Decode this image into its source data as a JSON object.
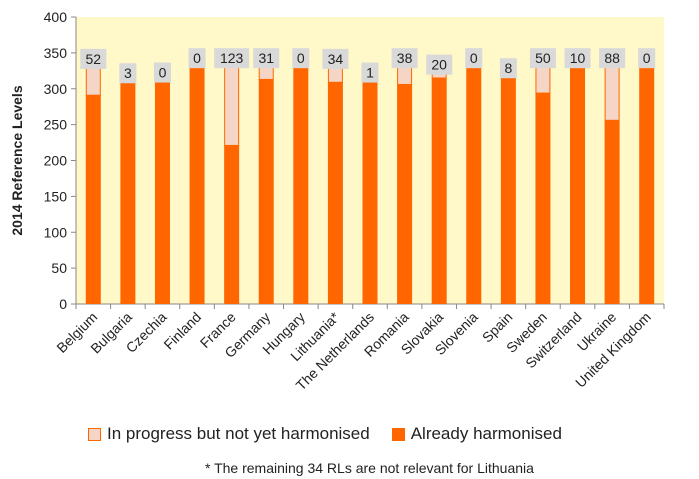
{
  "chart_data": {
    "type": "bar",
    "stacked": true,
    "ylabel": "2014 Reference Levels",
    "ylim": [
      0,
      400
    ],
    "yticks": [
      0,
      50,
      100,
      150,
      200,
      250,
      300,
      350,
      400
    ],
    "grid": false,
    "plot_background": "#fff8c8",
    "categories": [
      "Belgium",
      "Bulgaria",
      "Czechia",
      "Finland",
      "France",
      "Germany",
      "Hungary",
      "Lithuania*",
      "The Netherlands",
      "Romania",
      "Slovakia",
      "Slovenia",
      "Spain",
      "Sweden",
      "Switzerland",
      "Ukraine",
      "United Kingdom"
    ],
    "series": [
      {
        "name": "Already harmonised",
        "color": "#ff6600",
        "values": [
          291,
          320,
          324,
          344,
          221,
          313,
          344,
          309,
          323,
          306,
          315,
          344,
          322,
          294,
          334,
          256,
          344
        ]
      },
      {
        "name": "In progress but not yet harmonised",
        "color": "#f5d5c5",
        "border": "#ff6600",
        "values": [
          52,
          3,
          0,
          0,
          123,
          31,
          0,
          34,
          1,
          38,
          20,
          0,
          8,
          50,
          10,
          88,
          0
        ]
      }
    ],
    "data_labels": [
      "52",
      "3",
      "0",
      "0",
      "123",
      "31",
      "0",
      "34",
      "1",
      "38",
      "20",
      "0",
      "8",
      "50",
      "10",
      "88",
      "0"
    ],
    "legend_position": "bottom"
  },
  "legend": {
    "in_progress": "In progress but not yet harmonised",
    "harmonised": "Already harmonised"
  },
  "footnote": "* The remaining 34 RLs are not relevant for Lithuania"
}
